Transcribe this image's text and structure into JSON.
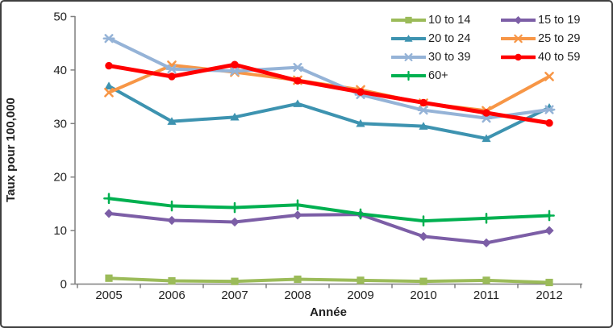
{
  "chart_data": {
    "type": "line",
    "title": "",
    "xlabel": "Année",
    "ylabel": "Taux pour 100,000",
    "x_labels": [
      "2005",
      "2006",
      "2007",
      "2008",
      "2009",
      "2010",
      "2011",
      "2012"
    ],
    "ylim": [
      0,
      50
    ],
    "yticks": [
      0,
      10,
      20,
      30,
      40,
      50
    ],
    "grid": false,
    "legend_position": "top-right-two-columns",
    "series": [
      {
        "name": "10 to 14",
        "color": "#9BBB59",
        "marker": "square",
        "line_width": 4,
        "values": [
          1.1,
          0.6,
          0.5,
          0.9,
          0.7,
          0.5,
          0.7,
          0.3
        ]
      },
      {
        "name": "15 to 19",
        "color": "#7C5EA6",
        "marker": "diamond",
        "line_width": 4,
        "values": [
          13.2,
          11.9,
          11.6,
          12.9,
          13.0,
          8.9,
          7.7,
          10.0
        ]
      },
      {
        "name": "20 to 24",
        "color": "#3D93B0",
        "marker": "triangle",
        "line_width": 4,
        "values": [
          37.0,
          30.4,
          31.2,
          33.7,
          30.0,
          29.5,
          27.2,
          33.0
        ]
      },
      {
        "name": "25 to 29",
        "color": "#F79646",
        "marker": "x",
        "line_width": 4,
        "values": [
          35.8,
          40.9,
          39.6,
          38.1,
          36.3,
          33.8,
          32.4,
          38.8
        ]
      },
      {
        "name": "30 to 39",
        "color": "#95B3D7",
        "marker": "star",
        "line_width": 4,
        "values": [
          45.9,
          40.2,
          39.8,
          40.5,
          35.4,
          32.5,
          31.0,
          32.6
        ]
      },
      {
        "name": "40 to 59",
        "color": "#FF0000",
        "marker": "circle",
        "line_width": 5,
        "values": [
          40.8,
          38.8,
          41.0,
          38.0,
          35.9,
          33.9,
          32.0,
          30.1
        ]
      },
      {
        "name": "60+",
        "color": "#00B050",
        "marker": "plus",
        "line_width": 4,
        "values": [
          16.0,
          14.6,
          14.3,
          14.8,
          13.1,
          11.8,
          12.3,
          12.8
        ]
      }
    ],
    "colors": {
      "axis": "#7F7F7F",
      "text": "#1F1F1F",
      "border": "#3F3F3F"
    }
  }
}
